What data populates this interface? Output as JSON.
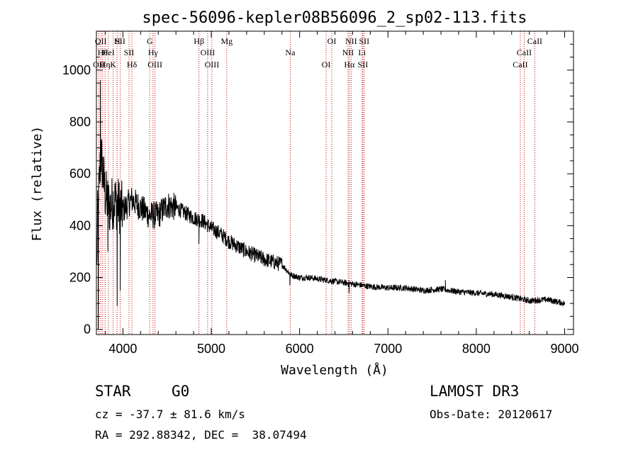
{
  "chart_data": {
    "type": "line",
    "title": "spec-56096-kepler08B56096_2_sp02-113.fits",
    "xlabel": "Wavelength (Å)",
    "ylabel": "Flux (relative)",
    "xlim": [
      3700,
      9100
    ],
    "ylim": [
      -20,
      1150
    ],
    "xticks": [
      4000,
      5000,
      6000,
      7000,
      8000,
      9000
    ],
    "yticks": [
      0,
      200,
      400,
      600,
      800,
      1000
    ],
    "spectrum_anchors": [
      {
        "x": 3700,
        "y": 30
      },
      {
        "x": 3710,
        "y": 400
      },
      {
        "x": 3750,
        "y": 680
      },
      {
        "x": 3800,
        "y": 520
      },
      {
        "x": 3850,
        "y": 470
      },
      {
        "x": 3900,
        "y": 500
      },
      {
        "x": 3950,
        "y": 480
      },
      {
        "x": 4000,
        "y": 460
      },
      {
        "x": 4100,
        "y": 500
      },
      {
        "x": 4200,
        "y": 470
      },
      {
        "x": 4300,
        "y": 440
      },
      {
        "x": 4400,
        "y": 440
      },
      {
        "x": 4500,
        "y": 480
      },
      {
        "x": 4600,
        "y": 470
      },
      {
        "x": 4700,
        "y": 450
      },
      {
        "x": 4800,
        "y": 430
      },
      {
        "x": 4900,
        "y": 420
      },
      {
        "x": 5000,
        "y": 390
      },
      {
        "x": 5100,
        "y": 370
      },
      {
        "x": 5200,
        "y": 340
      },
      {
        "x": 5300,
        "y": 320
      },
      {
        "x": 5400,
        "y": 300
      },
      {
        "x": 5500,
        "y": 285
      },
      {
        "x": 5600,
        "y": 270
      },
      {
        "x": 5700,
        "y": 260
      },
      {
        "x": 5800,
        "y": 250
      },
      {
        "x": 5900,
        "y": 210
      },
      {
        "x": 6000,
        "y": 200
      },
      {
        "x": 6100,
        "y": 200
      },
      {
        "x": 6200,
        "y": 195
      },
      {
        "x": 6300,
        "y": 190
      },
      {
        "x": 6400,
        "y": 185
      },
      {
        "x": 6500,
        "y": 180
      },
      {
        "x": 6600,
        "y": 175
      },
      {
        "x": 6700,
        "y": 170
      },
      {
        "x": 6800,
        "y": 165
      },
      {
        "x": 7000,
        "y": 160
      },
      {
        "x": 7200,
        "y": 160
      },
      {
        "x": 7400,
        "y": 150
      },
      {
        "x": 7600,
        "y": 155
      },
      {
        "x": 7800,
        "y": 145
      },
      {
        "x": 8000,
        "y": 140
      },
      {
        "x": 8200,
        "y": 135
      },
      {
        "x": 8400,
        "y": 125
      },
      {
        "x": 8600,
        "y": 110
      },
      {
        "x": 8800,
        "y": 115
      },
      {
        "x": 9000,
        "y": 100
      }
    ],
    "spectrum_features": [
      {
        "x": 3720,
        "y": 0
      },
      {
        "x": 3745,
        "y": 960
      },
      {
        "x": 3830,
        "y": 300
      },
      {
        "x": 3935,
        "y": 90
      },
      {
        "x": 3970,
        "y": 150
      },
      {
        "x": 4860,
        "y": 330
      },
      {
        "x": 5890,
        "y": 170
      },
      {
        "x": 6560,
        "y": 140
      },
      {
        "x": 7650,
        "y": 190
      }
    ],
    "line_markers": [
      {
        "x": 3727,
        "row": 0,
        "label": "OII"
      },
      {
        "x": 3750,
        "row": 1,
        "label": "OII"
      },
      {
        "x": 3771,
        "row": 2,
        "label": "Hθ"
      },
      {
        "x": 3798,
        "row": 3,
        "label": "Hη"
      },
      {
        "x": 3835,
        "row": 2,
        "label": "HeI"
      },
      {
        "x": 3889,
        "row": 3,
        "label": "K"
      },
      {
        "x": 3934,
        "row": 1,
        "label": "H"
      },
      {
        "x": 3969,
        "row": 1,
        "label": "SII"
      },
      {
        "x": 4069,
        "row": 2,
        "label": "SII"
      },
      {
        "x": 4102,
        "row": 3,
        "label": "Hδ"
      },
      {
        "x": 4304,
        "row": 1,
        "label": "G"
      },
      {
        "x": 4341,
        "row": 2,
        "label": "Hγ"
      },
      {
        "x": 4363,
        "row": 3,
        "label": "OIII"
      },
      {
        "x": 4861,
        "row": 1,
        "label": "Hβ"
      },
      {
        "x": 4959,
        "row": 2,
        "label": "OIII"
      },
      {
        "x": 5007,
        "row": 3,
        "label": "OIII"
      },
      {
        "x": 5175,
        "row": 1,
        "label": "Mg"
      },
      {
        "x": 5894,
        "row": 2,
        "label": "Na"
      },
      {
        "x": 6300,
        "row": 3,
        "label": "OI"
      },
      {
        "x": 6364,
        "row": 1,
        "label": "OI"
      },
      {
        "x": 6548,
        "row": 2,
        "label": "NII"
      },
      {
        "x": 6563,
        "row": 3,
        "label": "Hα"
      },
      {
        "x": 6583,
        "row": 1,
        "label": "NII"
      },
      {
        "x": 6707,
        "row": 2,
        "label": "Li"
      },
      {
        "x": 6716,
        "row": 3,
        "label": "SII"
      },
      {
        "x": 6731,
        "row": 1,
        "label": "SII"
      },
      {
        "x": 8498,
        "row": 3,
        "label": "CaII"
      },
      {
        "x": 8542,
        "row": 2,
        "label": "CaII"
      },
      {
        "x": 8662,
        "row": 1,
        "label": "CaII"
      }
    ],
    "marker_color": "#cc0000",
    "line_color": "#000000"
  },
  "info": {
    "object_class": "STAR",
    "subclass": "G0",
    "survey": "LAMOST DR3",
    "redshift": "cz = -37.7 ± 81.6 km/s",
    "obs_date": "Obs-Date: 20120617",
    "coords": "RA = 292.88342, DEC =  38.07494"
  }
}
